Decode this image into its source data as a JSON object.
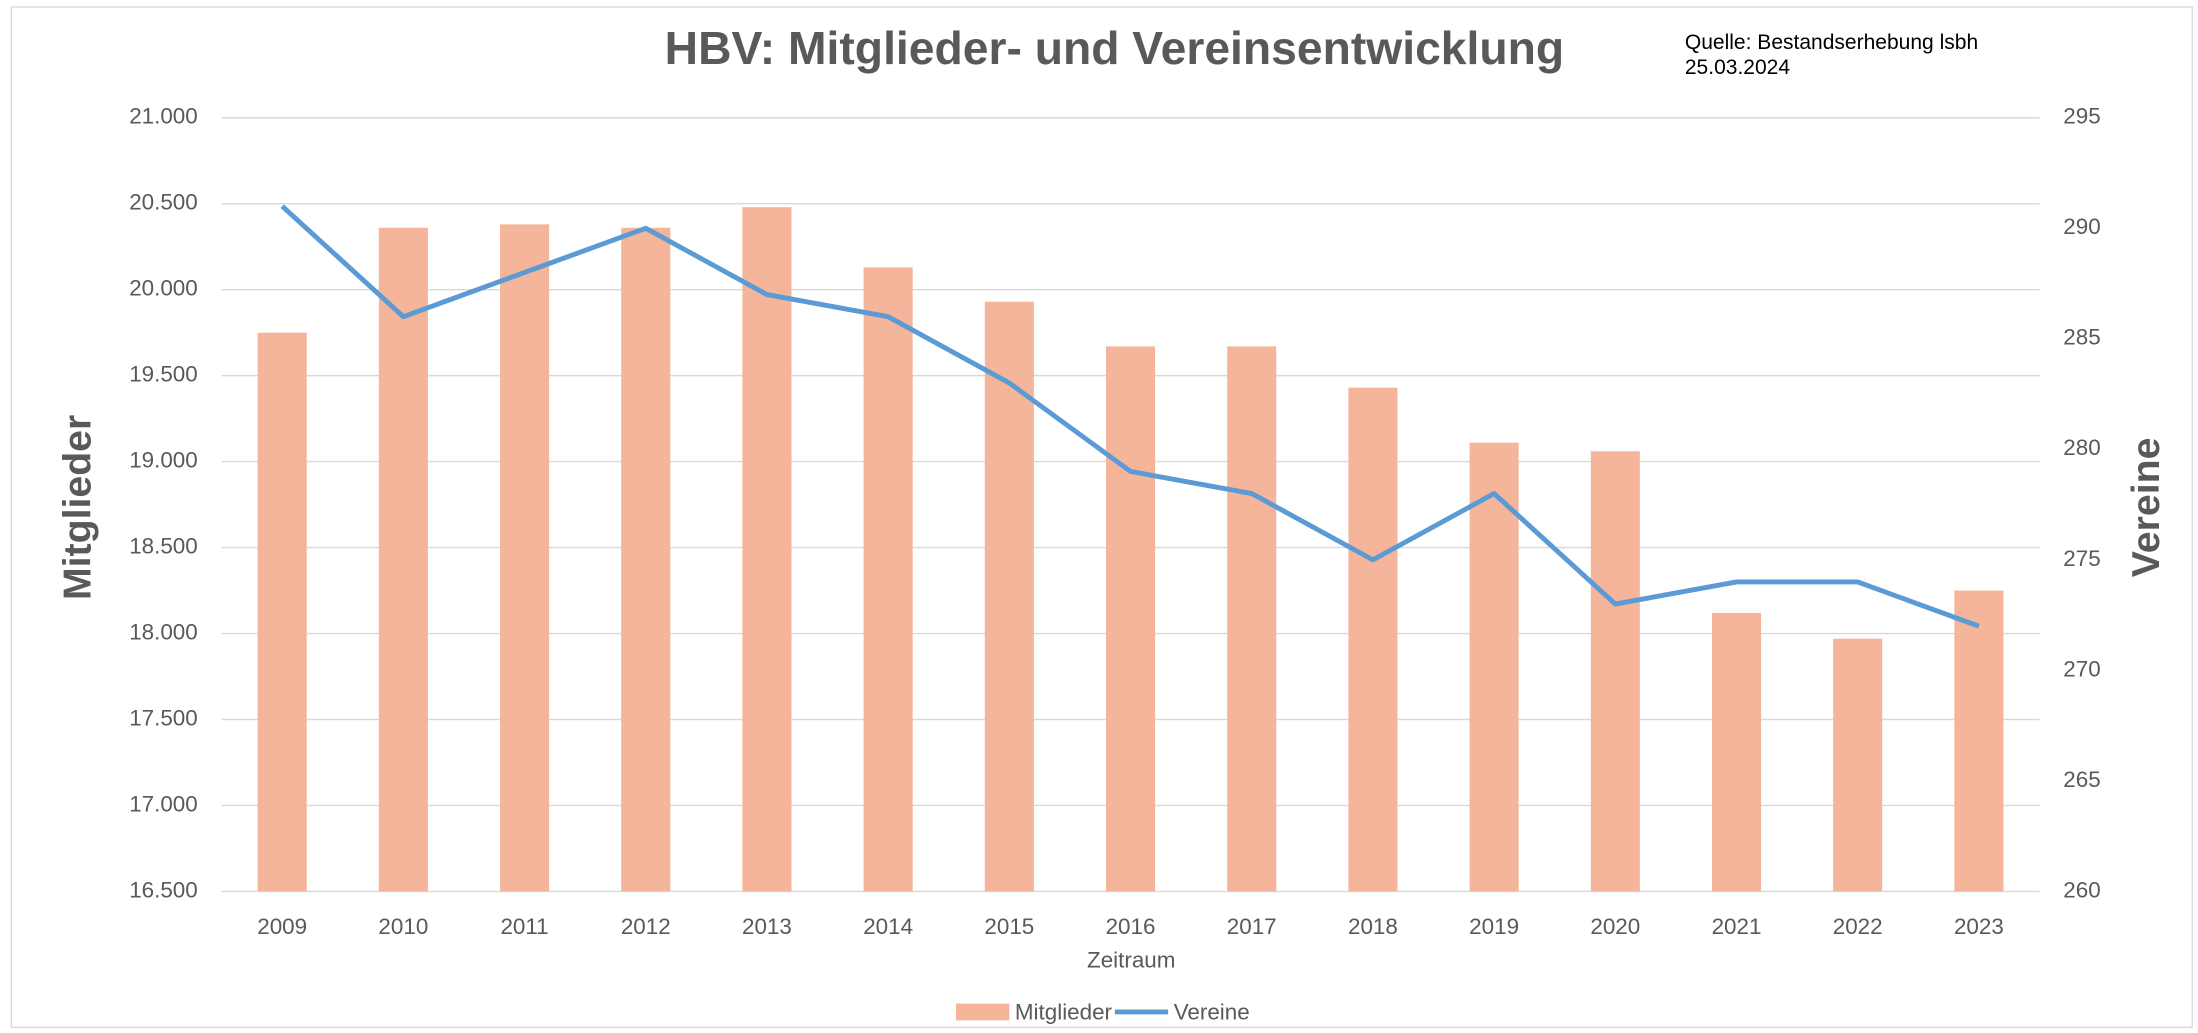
{
  "chart_data": {
    "type": "bar_line",
    "title": "HBV: Mitglieder- und Vereinsentwicklung",
    "source": [
      "Quelle: Bestandserhebung lsbh",
      "25.03.2024"
    ],
    "x_label": "Zeitraum",
    "y_label": "Mitglieder",
    "y2_label": "Vereine",
    "categories": [
      "2009",
      "2010",
      "2011",
      "2012",
      "2013",
      "2014",
      "2015",
      "2016",
      "2017",
      "2018",
      "2019",
      "2020",
      "2021",
      "2022",
      "2023"
    ],
    "series": [
      {
        "name": "Mitglieder",
        "type": "bar",
        "color": "#f4b59a",
        "values": [
          19750,
          20360,
          20380,
          20360,
          20480,
          20130,
          19930,
          19670,
          19670,
          19430,
          19110,
          19060,
          18120,
          17970,
          18250
        ]
      },
      {
        "name": "Vereine",
        "type": "line",
        "axis": "y2",
        "color": "#5b9bd5",
        "values": [
          291,
          286,
          288,
          290,
          287,
          286,
          283,
          279,
          278,
          275,
          278,
          273,
          274,
          274,
          272
        ]
      }
    ],
    "ylim": [
      16500,
      21000
    ],
    "yticks": [
      {
        "value": 16500,
        "label": "16.500"
      },
      {
        "value": 17000,
        "label": "17.000"
      },
      {
        "value": 17500,
        "label": "17.500"
      },
      {
        "value": 18000,
        "label": "18.000"
      },
      {
        "value": 18500,
        "label": "18.500"
      },
      {
        "value": 19000,
        "label": "19.000"
      },
      {
        "value": 19500,
        "label": "19.500"
      },
      {
        "value": 20000,
        "label": "20.000"
      },
      {
        "value": 20500,
        "label": "20.500"
      },
      {
        "value": 21000,
        "label": "21.000"
      }
    ],
    "y2lim": [
      260,
      295
    ],
    "y2ticks": [
      260,
      265,
      270,
      275,
      280,
      285,
      290,
      295
    ],
    "grid": true,
    "legend": "bottom"
  }
}
